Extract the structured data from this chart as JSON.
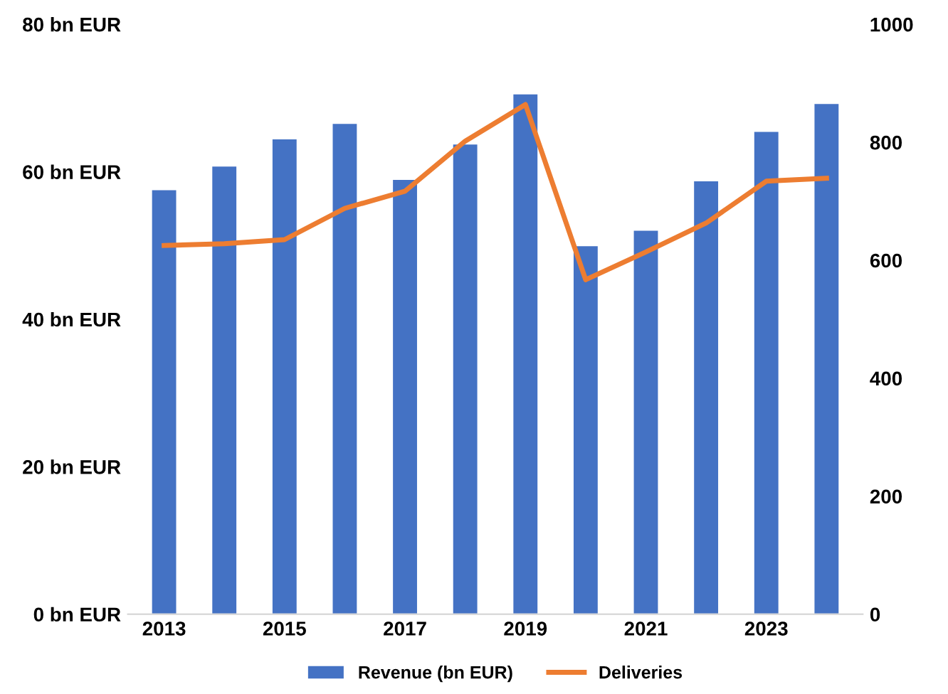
{
  "chart_data": {
    "type": "bar",
    "categories": [
      "2013",
      null,
      "2015",
      null,
      "2017",
      null,
      "2019",
      null,
      "2021",
      null,
      "2023",
      null
    ],
    "series": [
      {
        "name": "Revenue (bn EUR)",
        "color": "#4472c4",
        "values": [
          57.5,
          60.7,
          64.4,
          66.5,
          58.9,
          63.7,
          70.5,
          49.9,
          52.0,
          58.7,
          65.4,
          69.2
        ]
      },
      {
        "name": "Deliveries",
        "color": "#ed7d31",
        "type": "line",
        "axis": "y2",
        "values": [
          625,
          628,
          635,
          688,
          717,
          802,
          864,
          567,
          614,
          663,
          734,
          739
        ]
      }
    ],
    "ylim": [
      0,
      80
    ],
    "yticks": [
      {
        "value": 0,
        "label": "0 bn EUR"
      },
      {
        "value": 20,
        "label": "20 bn EUR"
      },
      {
        "value": 40,
        "label": "40 bn EUR"
      },
      {
        "value": 60,
        "label": "60 bn EUR"
      },
      {
        "value": 80,
        "label": "80 bn EUR"
      }
    ],
    "y2lim": [
      0,
      1000
    ],
    "y2ticks": [
      0,
      200,
      400,
      600,
      800,
      1000
    ],
    "grid": false,
    "legend": "bottom",
    "marker": "none",
    "line_style": "solid"
  }
}
